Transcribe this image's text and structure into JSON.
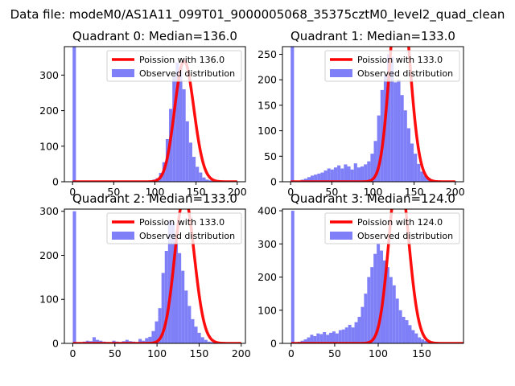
{
  "figure": {
    "suptitle": "Data file: modeM0/AS1A11_099T01_9000005068_35375cztM0_level2_quad_clean"
  },
  "colors": {
    "poisson": "#ff0000",
    "observed": "#7f7ff7"
  },
  "legend_labels": {
    "observed": "Observed distribution"
  },
  "chart_data": [
    {
      "type": "bar",
      "title": "Quadrant 0: Median=136.0",
      "xlim": [
        -10,
        210
      ],
      "ylim": [
        0,
        380
      ],
      "xticks": [
        0,
        50,
        100,
        150,
        200
      ],
      "yticks": [
        0,
        100,
        200,
        300
      ],
      "legend": "top-right",
      "grid": false,
      "poisson_label": "Poission with 136.0",
      "poisson_mean": 136.0,
      "poisson_scale": 1.0,
      "hist": {
        "bin_width": 4.04,
        "edges_start": 0,
        "counts": [
          380,
          0,
          0,
          0,
          0,
          0,
          0,
          0,
          0,
          0,
          0,
          0,
          0,
          0,
          0,
          0,
          0,
          0,
          0,
          0,
          0,
          0,
          2,
          3,
          6,
          10,
          25,
          55,
          120,
          205,
          295,
          335,
          320,
          260,
          170,
          110,
          70,
          42,
          26,
          12,
          6,
          4,
          2,
          1,
          0,
          0,
          0,
          0,
          0,
          1
        ]
      }
    },
    {
      "type": "bar",
      "title": "Quadrant 1: Median=133.0",
      "xlim": [
        -10,
        210
      ],
      "ylim": [
        0,
        265
      ],
      "xticks": [
        0,
        50,
        100,
        150,
        200
      ],
      "yticks": [
        0,
        50,
        100,
        150,
        200,
        250
      ],
      "legend": "top-right",
      "grid": false,
      "poisson_label": "Poission with 133.0",
      "poisson_mean": 133.0,
      "poisson_scale": 1.0,
      "hist": {
        "bin_width": 4.04,
        "edges_start": 0,
        "counts": [
          265,
          0,
          0,
          4,
          6,
          9,
          12,
          14,
          16,
          18,
          22,
          26,
          24,
          28,
          32,
          26,
          34,
          30,
          24,
          36,
          28,
          30,
          34,
          40,
          55,
          80,
          130,
          180,
          210,
          250,
          245,
          195,
          200,
          170,
          140,
          105,
          75,
          55,
          35,
          20,
          12,
          8,
          4,
          2,
          1,
          0,
          0,
          0,
          0,
          1
        ]
      }
    },
    {
      "type": "bar",
      "title": "Quadrant 2: Median=133.0",
      "xlim": [
        -10,
        205
      ],
      "ylim": [
        0,
        305
      ],
      "xticks": [
        0,
        50,
        100,
        150,
        200
      ],
      "yticks": [
        0,
        100,
        200,
        300
      ],
      "legend": "top-right",
      "grid": false,
      "poisson_label": "Poission with 133.0",
      "poisson_mean": 133.0,
      "poisson_scale": 1.0,
      "hist": {
        "bin_width": 3.9,
        "edges_start": 0,
        "counts": [
          300,
          0,
          2,
          4,
          6,
          5,
          14,
          8,
          6,
          4,
          3,
          2,
          6,
          4,
          3,
          5,
          8,
          5,
          4,
          3,
          10,
          6,
          12,
          15,
          28,
          50,
          80,
          160,
          210,
          280,
          275,
          230,
          205,
          165,
          120,
          85,
          55,
          38,
          24,
          14,
          8,
          4,
          3,
          2,
          1,
          1,
          0,
          0,
          0,
          1
        ]
      }
    },
    {
      "type": "bar",
      "title": "Quadrant 3: Median=124.0",
      "xlim": [
        -10,
        198
      ],
      "ylim": [
        0,
        405
      ],
      "xticks": [
        0,
        50,
        100,
        150
      ],
      "yticks": [
        0,
        100,
        200,
        300,
        400
      ],
      "legend": "top-right",
      "grid": false,
      "poisson_label": "Poission with 124.0",
      "poisson_mean": 124.0,
      "poisson_scale": 1.0,
      "hist": {
        "bin_width": 3.64,
        "edges_start": 0,
        "counts": [
          400,
          0,
          5,
          8,
          12,
          18,
          26,
          22,
          30,
          28,
          34,
          26,
          32,
          36,
          30,
          40,
          42,
          48,
          56,
          48,
          64,
          80,
          110,
          150,
          200,
          230,
          270,
          300,
          280,
          250,
          230,
          200,
          175,
          135,
          100,
          80,
          70,
          55,
          40,
          30,
          18,
          12,
          8,
          6,
          4,
          0,
          0,
          0,
          0,
          0
        ]
      }
    }
  ]
}
